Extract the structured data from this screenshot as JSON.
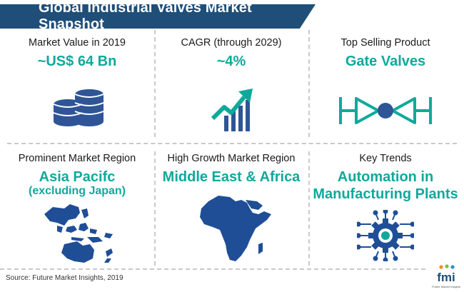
{
  "header": {
    "title": "Global Industrial Valves Market Snapshot"
  },
  "colors": {
    "banner": "#1f4e79",
    "accent": "#0fa99b",
    "icon_blue": "#2f5597",
    "map_blue": "#1f4e96"
  },
  "cells": [
    {
      "label": "Market Value in 2019",
      "value": "~US$ 64 Bn",
      "icon": "coin-stack-icon"
    },
    {
      "label": "CAGR (through 2029)",
      "value": "~4%",
      "icon": "growth-chart-icon"
    },
    {
      "label": "Top Selling Product",
      "value": "Gate Valves",
      "icon": "gate-valve-icon"
    },
    {
      "label": "Prominent Market Region",
      "value": "Asia Pacifc",
      "value2": "(excluding Japan)",
      "icon": "asia-pacific-map-icon"
    },
    {
      "label": "High Growth Market Region",
      "value": "Middle East & Africa",
      "icon": "africa-map-icon"
    },
    {
      "label": "Key Trends",
      "value": "Automation in",
      "value2": "Manufacturing Plants",
      "icon": "automation-gear-icon"
    }
  ],
  "footer": {
    "source": "Source: Future Market Insights, 2019"
  },
  "logo": {
    "text": "fmi",
    "tagline": "Future Market Insights"
  }
}
